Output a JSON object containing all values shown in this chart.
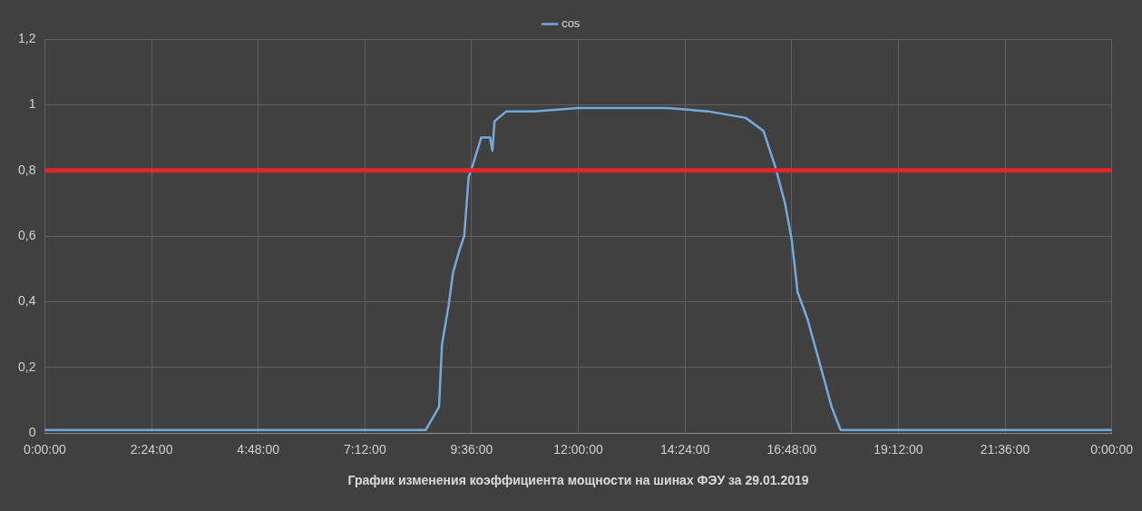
{
  "chart_data": {
    "type": "line",
    "xlabel": "График изменения коэффициента мощности на шинах ФЭУ за 29.01.2019",
    "x": [
      "2019-01-29T00:00",
      "2019-01-29T04:00",
      "2019-01-29T08:00",
      "2019-01-29T08:34",
      "2019-01-29T08:52",
      "2019-01-29T08:56",
      "2019-01-29T09:05",
      "2019-01-29T09:11",
      "2019-01-29T09:20",
      "2019-01-29T09:26",
      "2019-01-29T09:32",
      "2019-01-29T09:38",
      "2019-01-29T09:49",
      "2019-01-29T10:01",
      "2019-01-29T10:04",
      "2019-01-29T10:07",
      "2019-01-29T10:23",
      "2019-01-29T11:00",
      "2019-01-29T12:00",
      "2019-01-29T13:00",
      "2019-01-29T14:00",
      "2019-01-29T14:55",
      "2019-01-29T15:46",
      "2019-01-29T16:10",
      "2019-01-29T16:26",
      "2019-01-29T16:39",
      "2019-01-29T16:48",
      "2019-01-29T16:56",
      "2019-01-29T17:09",
      "2019-01-29T17:25",
      "2019-01-29T17:42",
      "2019-01-29T17:54",
      "2019-01-29T20:00",
      "2019-01-30T00:00"
    ],
    "series": [
      {
        "name": "cos",
        "color": "#74a9dc",
        "values": [
          0.01,
          0.01,
          0.01,
          0.01,
          0.08,
          0.27,
          0.39,
          0.49,
          0.56,
          0.6,
          0.78,
          0.82,
          0.9,
          0.9,
          0.86,
          0.95,
          0.98,
          0.98,
          0.99,
          0.99,
          0.99,
          0.98,
          0.96,
          0.92,
          0.81,
          0.7,
          0.59,
          0.43,
          0.35,
          0.22,
          0.08,
          0.01,
          0.01,
          0.01
        ]
      }
    ],
    "xlim": [
      "2019-01-29T00:00",
      "2019-01-30T00:00"
    ],
    "xticks": [
      {
        "value": "2019-01-29T00:00",
        "label": "0:00:00"
      },
      {
        "value": "2019-01-29T02:24",
        "label": "2:24:00"
      },
      {
        "value": "2019-01-29T04:48",
        "label": "4:48:00"
      },
      {
        "value": "2019-01-29T07:12",
        "label": "7:12:00"
      },
      {
        "value": "2019-01-29T09:36",
        "label": "9:36:00"
      },
      {
        "value": "2019-01-29T12:00",
        "label": "12:00:00"
      },
      {
        "value": "2019-01-29T14:24",
        "label": "14:24:00"
      },
      {
        "value": "2019-01-29T16:48",
        "label": "16:48:00"
      },
      {
        "value": "2019-01-29T19:12",
        "label": "19:12:00"
      },
      {
        "value": "2019-01-29T21:36",
        "label": "21:36:00"
      },
      {
        "value": "2019-01-30T00:00",
        "label": "0:00:00"
      }
    ],
    "ylim": [
      0,
      1.2
    ],
    "yticks": [
      0,
      {
        "value": 0.2,
        "label": "0,2"
      },
      {
        "value": 0.4,
        "label": "0,4"
      },
      {
        "value": 0.6,
        "label": "0,6"
      },
      {
        "value": 0.8,
        "label": "0,8"
      },
      1,
      {
        "value": 1.2,
        "label": "1,2"
      }
    ],
    "ref_lines": [
      {
        "axis": "y",
        "value": 0.8,
        "color": "#e0282a"
      }
    ],
    "grid": true,
    "legend": "top",
    "marker": "none",
    "line_style": "solid"
  }
}
